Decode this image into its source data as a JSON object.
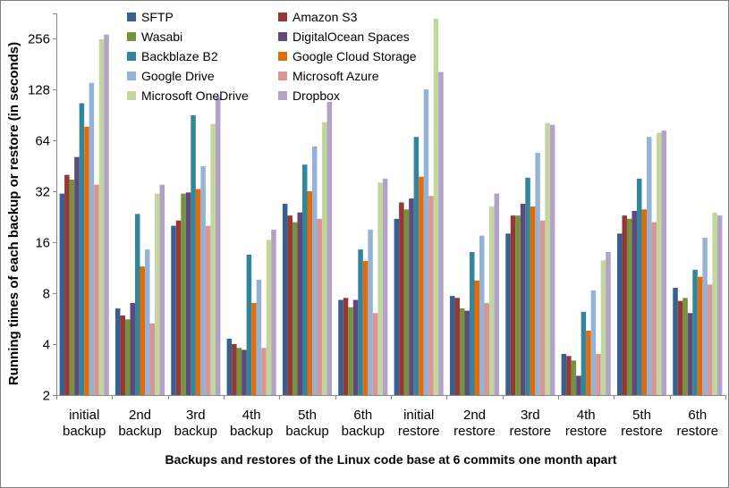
{
  "chart_data": {
    "type": "bar",
    "title": "",
    "xlabel": "Backups and restores of the Linux code base at 6 commits one month apart",
    "ylabel": "Running times of each backup or restore (in seconds)",
    "y_scale": "log2",
    "yticks": [
      2,
      4,
      8,
      16,
      32,
      64,
      128,
      256
    ],
    "ylim": [
      2,
      360
    ],
    "grid": false,
    "legend_position": "top-center two-column",
    "categories": [
      [
        "initial",
        "backup"
      ],
      [
        "2nd",
        "backup"
      ],
      [
        "3rd",
        "backup"
      ],
      [
        "4th",
        "backup"
      ],
      [
        "5th",
        "backup"
      ],
      [
        "6th",
        "backup"
      ],
      [
        "initial",
        "restore"
      ],
      [
        "2nd",
        "restore"
      ],
      [
        "3rd",
        "restore"
      ],
      [
        "4th",
        "restore"
      ],
      [
        "5th",
        "restore"
      ],
      [
        "6th",
        "restore"
      ]
    ],
    "series": [
      {
        "name": "SFTP",
        "color": "#366092",
        "values": [
          31,
          6.5,
          20,
          4.3,
          27,
          7.3,
          22,
          7.7,
          18,
          3.5,
          18,
          8.6
        ]
      },
      {
        "name": "Amazon S3",
        "color": "#953735",
        "values": [
          40,
          5.9,
          21.5,
          4.0,
          23,
          7.5,
          27.5,
          7.5,
          23,
          3.4,
          23,
          7.2
        ]
      },
      {
        "name": "Wasabi",
        "color": "#76923C",
        "values": [
          37.5,
          5.6,
          31,
          3.8,
          21,
          6.6,
          25,
          6.5,
          23,
          3.2,
          22,
          7.5
        ]
      },
      {
        "name": "DigitalOcean Spaces",
        "color": "#5F497A",
        "values": [
          51,
          7.0,
          31.5,
          3.7,
          24,
          7.3,
          29,
          6.3,
          27,
          2.6,
          24.5,
          6.1
        ]
      },
      {
        "name": "Backblaze B2",
        "color": "#31859C",
        "values": [
          106,
          23.5,
          90,
          13.5,
          46,
          14.5,
          67,
          14,
          38.5,
          6.2,
          38,
          11
        ]
      },
      {
        "name": "Google Cloud Storage",
        "color": "#E36C0A",
        "values": [
          77,
          11.5,
          33,
          7.0,
          32,
          12.4,
          39,
          9.5,
          26,
          4.8,
          25,
          10
        ]
      },
      {
        "name": "Google Drive",
        "color": "#95B3D7",
        "values": [
          140,
          14.5,
          45,
          9.6,
          59,
          19,
          128,
          17.5,
          54,
          8.3,
          67,
          17
        ]
      },
      {
        "name": "Microsoft Azure",
        "color": "#D99694",
        "values": [
          35,
          5.3,
          20,
          3.8,
          22,
          6.1,
          30,
          7.0,
          21.5,
          3.5,
          21,
          9.0
        ]
      },
      {
        "name": "Microsoft OneDrive",
        "color": "#C3D69B",
        "values": [
          253,
          31,
          80,
          16.5,
          82,
          36,
          335,
          26,
          81,
          12.5,
          71,
          24
        ]
      },
      {
        "name": "Dropbox",
        "color": "#B3A2C7",
        "values": [
          270,
          35,
          115,
          19,
          108,
          38,
          162,
          31,
          79,
          14,
          73,
          23
        ]
      }
    ],
    "axis_color": "#898989",
    "text_color": "#000000"
  }
}
